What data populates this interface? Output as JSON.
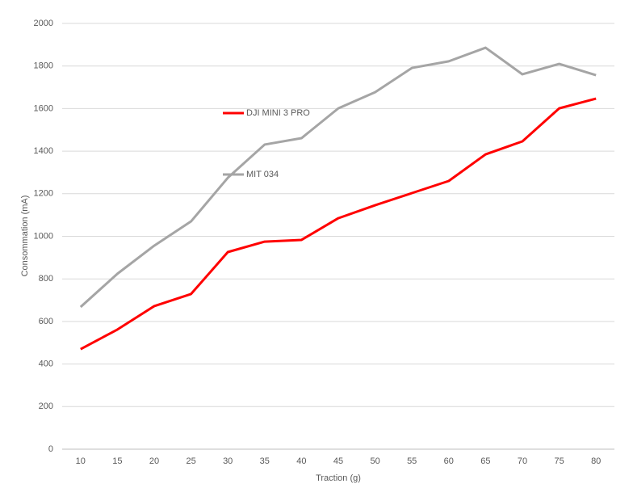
{
  "chart_data": {
    "type": "line",
    "x_label": "Traction (g)",
    "y_label": "Consommation (mA)",
    "categories": [
      "10",
      "15",
      "20",
      "25",
      "30",
      "35",
      "40",
      "45",
      "50",
      "55",
      "60",
      "65",
      "70",
      "75",
      "80"
    ],
    "series": [
      {
        "name": "DJI MINI 3 PRO",
        "color": "#ff0000",
        "values": [
          470,
          562,
          672,
          729,
          926,
          975,
          983,
          1085,
          1146,
          1203,
          1260,
          1385,
          1446,
          1601,
          1647
        ]
      },
      {
        "name": "MIT 034",
        "color": "#a5a5a5",
        "values": [
          668,
          824,
          956,
          1070,
          1275,
          1431,
          1461,
          1601,
          1677,
          1791,
          1822,
          1886,
          1761,
          1810,
          1757
        ]
      }
    ],
    "ylim": [
      0,
      2000
    ],
    "yticks": [
      0,
      200,
      400,
      600,
      800,
      1000,
      1200,
      1400,
      1600,
      1800,
      2000
    ],
    "grid": true
  }
}
